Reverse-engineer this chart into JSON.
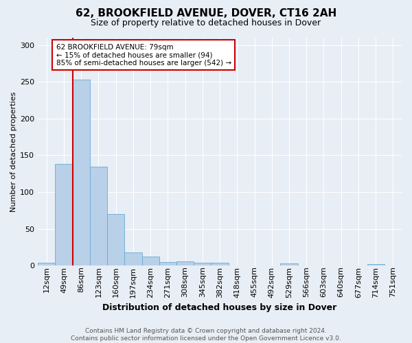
{
  "title": "62, BROOKFIELD AVENUE, DOVER, CT16 2AH",
  "subtitle": "Size of property relative to detached houses in Dover",
  "xlabel": "Distribution of detached houses by size in Dover",
  "ylabel": "Number of detached properties",
  "categories": [
    "12sqm",
    "49sqm",
    "86sqm",
    "123sqm",
    "160sqm",
    "197sqm",
    "234sqm",
    "271sqm",
    "308sqm",
    "345sqm",
    "382sqm",
    "418sqm",
    "455sqm",
    "492sqm",
    "529sqm",
    "566sqm",
    "603sqm",
    "640sqm",
    "677sqm",
    "714sqm",
    "751sqm"
  ],
  "values": [
    4,
    138,
    253,
    135,
    70,
    18,
    12,
    5,
    6,
    4,
    4,
    0,
    0,
    0,
    3,
    0,
    0,
    0,
    0,
    2,
    0
  ],
  "bar_color": "#b8d0e8",
  "bar_edge_color": "#6aaad4",
  "vline_color": "#cc0000",
  "annotation_text": "62 BROOKFIELD AVENUE: 79sqm\n← 15% of detached houses are smaller (94)\n85% of semi-detached houses are larger (542) →",
  "annotation_box_color": "#ffffff",
  "annotation_box_edge": "#cc0000",
  "footer_line1": "Contains HM Land Registry data © Crown copyright and database right 2024.",
  "footer_line2": "Contains public sector information licensed under the Open Government Licence v3.0.",
  "ylim": [
    0,
    310
  ],
  "yticks": [
    0,
    50,
    100,
    150,
    200,
    250,
    300
  ],
  "background_color": "#e8eef5",
  "plot_background": "#e8eef5",
  "title_fontsize": 11,
  "subtitle_fontsize": 9,
  "ylabel_fontsize": 8,
  "xlabel_fontsize": 9,
  "tick_fontsize": 8,
  "footer_fontsize": 6.5,
  "annotation_fontsize": 7.5
}
